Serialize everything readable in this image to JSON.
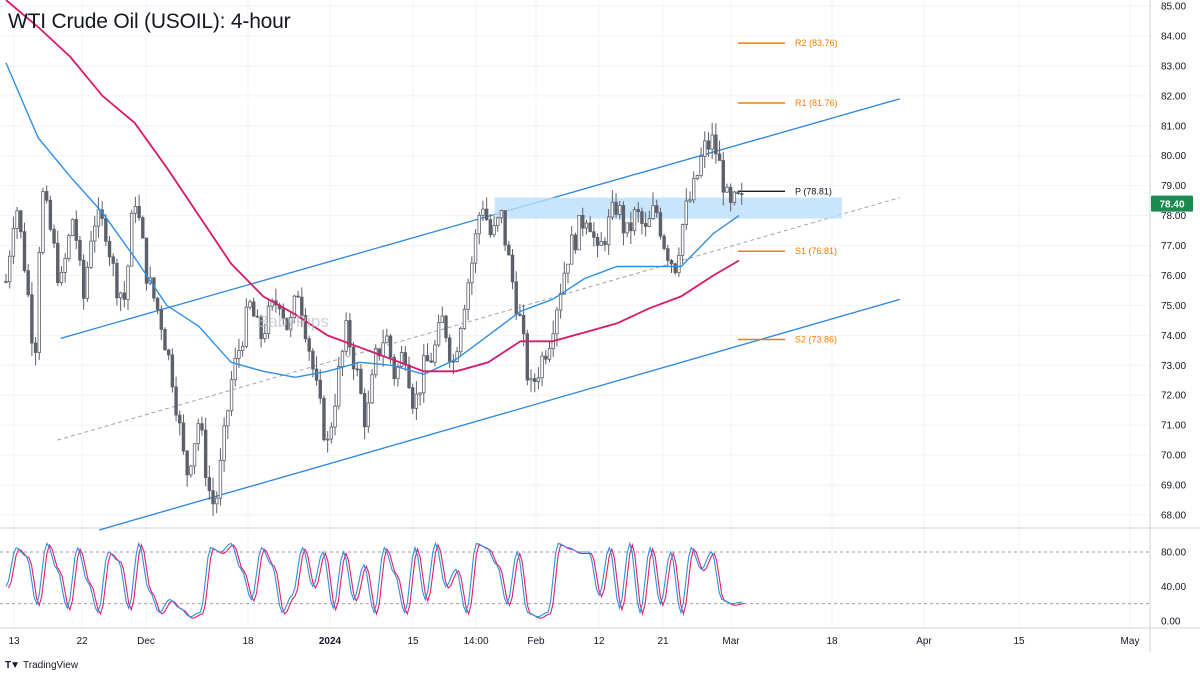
{
  "header": {
    "title": "WTI Crude Oil (USOIL): 4-hour"
  },
  "watermark": "BabyPips",
  "footer": {
    "brand": "TradingView"
  },
  "colors": {
    "candle": "#5d606b",
    "channel": "#2a86e0",
    "ma_blue": "#2e8ee6",
    "ma_red": "#d7196b",
    "pivot_orange": "#f57c00",
    "zone": "#bbdefb",
    "price_badge": "#1b8a4e",
    "stoch_k": "#2e8ee6",
    "stoch_d": "#e91e63"
  },
  "chart_data": [
    {
      "type": "candlestick",
      "title": "WTI Crude Oil (USOIL): 4-hour",
      "x_ticks": [
        "13",
        "22",
        "Dec",
        "18",
        "2024",
        "15",
        "14:00",
        "Feb",
        "12",
        "21",
        "Mar",
        "18",
        "Apr",
        "15",
        "May"
      ],
      "y_ticks": [
        "68.00",
        "69.00",
        "70.00",
        "71.00",
        "72.00",
        "73.00",
        "74.00",
        "75.00",
        "76.00",
        "77.00",
        "78.00",
        "79.00",
        "80.00",
        "81.00",
        "82.00",
        "83.00",
        "84.00",
        "85.00"
      ],
      "ylim": [
        67.5,
        85.2
      ],
      "current_price": "78.40",
      "close_path": [
        {
          "x": 0.0,
          "y": 75.8
        },
        {
          "x": 0.3,
          "y": 78.6
        },
        {
          "x": 0.6,
          "y": 76.2
        },
        {
          "x": 0.9,
          "y": 73.2
        },
        {
          "x": 1.1,
          "y": 78.9
        },
        {
          "x": 1.4,
          "y": 77.4
        },
        {
          "x": 1.7,
          "y": 75.6
        },
        {
          "x": 2.1,
          "y": 78.1
        },
        {
          "x": 2.4,
          "y": 75.1
        },
        {
          "x": 2.7,
          "y": 77.9
        },
        {
          "x": 3.1,
          "y": 77.6
        },
        {
          "x": 3.4,
          "y": 75.8
        },
        {
          "x": 3.7,
          "y": 75.2
        },
        {
          "x": 4.0,
          "y": 78.8
        },
        {
          "x": 4.4,
          "y": 75.9
        },
        {
          "x": 4.8,
          "y": 74.6
        },
        {
          "x": 5.2,
          "y": 72.5
        },
        {
          "x": 5.6,
          "y": 69.3
        },
        {
          "x": 6.0,
          "y": 71.2
        },
        {
          "x": 6.3,
          "y": 68.9
        },
        {
          "x": 6.5,
          "y": 68.2
        },
        {
          "x": 6.7,
          "y": 69.8
        },
        {
          "x": 7.0,
          "y": 72.4
        },
        {
          "x": 7.3,
          "y": 73.8
        },
        {
          "x": 7.6,
          "y": 75.0
        },
        {
          "x": 7.9,
          "y": 73.9
        },
        {
          "x": 8.2,
          "y": 74.7
        },
        {
          "x": 8.5,
          "y": 75.3
        },
        {
          "x": 8.8,
          "y": 74.1
        },
        {
          "x": 9.1,
          "y": 75.6
        },
        {
          "x": 9.4,
          "y": 73.8
        },
        {
          "x": 9.7,
          "y": 71.9
        },
        {
          "x": 10.0,
          "y": 70.3
        },
        {
          "x": 10.3,
          "y": 72.4
        },
        {
          "x": 10.6,
          "y": 74.2
        },
        {
          "x": 10.9,
          "y": 72.8
        },
        {
          "x": 11.2,
          "y": 71.0
        },
        {
          "x": 11.5,
          "y": 73.2
        },
        {
          "x": 11.8,
          "y": 74.1
        },
        {
          "x": 12.1,
          "y": 72.6
        },
        {
          "x": 12.4,
          "y": 73.6
        },
        {
          "x": 12.7,
          "y": 71.6
        },
        {
          "x": 13.0,
          "y": 72.9
        },
        {
          "x": 13.3,
          "y": 73.4
        },
        {
          "x": 13.6,
          "y": 74.6
        },
        {
          "x": 13.9,
          "y": 73.0
        },
        {
          "x": 14.2,
          "y": 74.9
        },
        {
          "x": 14.5,
          "y": 76.5
        },
        {
          "x": 14.8,
          "y": 78.6
        },
        {
          "x": 15.1,
          "y": 77.2
        },
        {
          "x": 15.4,
          "y": 78.0
        },
        {
          "x": 15.7,
          "y": 76.1
        },
        {
          "x": 16.0,
          "y": 74.4
        },
        {
          "x": 16.3,
          "y": 72.1
        },
        {
          "x": 16.6,
          "y": 73.0
        },
        {
          "x": 16.9,
          "y": 73.9
        },
        {
          "x": 17.2,
          "y": 75.4
        },
        {
          "x": 17.5,
          "y": 76.8
        },
        {
          "x": 17.8,
          "y": 77.5
        },
        {
          "x": 18.1,
          "y": 78.2
        },
        {
          "x": 18.4,
          "y": 76.6
        },
        {
          "x": 18.7,
          "y": 77.6
        },
        {
          "x": 19.0,
          "y": 78.4
        },
        {
          "x": 19.3,
          "y": 77.3
        },
        {
          "x": 19.6,
          "y": 78.1
        },
        {
          "x": 19.9,
          "y": 77.4
        },
        {
          "x": 20.2,
          "y": 78.3
        },
        {
          "x": 20.5,
          "y": 77.0
        },
        {
          "x": 20.8,
          "y": 76.3
        },
        {
          "x": 21.1,
          "y": 78.0
        },
        {
          "x": 21.4,
          "y": 78.9
        },
        {
          "x": 21.7,
          "y": 80.2
        },
        {
          "x": 22.0,
          "y": 80.5
        },
        {
          "x": 22.3,
          "y": 79.2
        },
        {
          "x": 22.5,
          "y": 78.1
        },
        {
          "x": 22.7,
          "y": 78.5
        },
        {
          "x": 22.9,
          "y": 78.4
        }
      ],
      "moving_averages": [
        {
          "name": "",
          "color": "#2e8ee6",
          "values": [
            {
              "x": 0.0,
              "y": 83.1
            },
            {
              "x": 1.0,
              "y": 80.6
            },
            {
              "x": 2.0,
              "y": 79.3
            },
            {
              "x": 3.0,
              "y": 78.1
            },
            {
              "x": 4.0,
              "y": 76.6
            },
            {
              "x": 5.0,
              "y": 75.0
            },
            {
              "x": 6.0,
              "y": 74.3
            },
            {
              "x": 7.0,
              "y": 73.1
            },
            {
              "x": 8.0,
              "y": 72.8
            },
            {
              "x": 9.0,
              "y": 72.6
            },
            {
              "x": 10.0,
              "y": 72.8
            },
            {
              "x": 11.0,
              "y": 73.1
            },
            {
              "x": 12.0,
              "y": 73.0
            },
            {
              "x": 13.0,
              "y": 72.7
            },
            {
              "x": 14.0,
              "y": 73.2
            },
            {
              "x": 15.0,
              "y": 74.0
            },
            {
              "x": 16.0,
              "y": 74.8
            },
            {
              "x": 17.0,
              "y": 75.2
            },
            {
              "x": 18.0,
              "y": 75.9
            },
            {
              "x": 19.0,
              "y": 76.3
            },
            {
              "x": 20.0,
              "y": 76.3
            },
            {
              "x": 21.0,
              "y": 76.3
            },
            {
              "x": 22.0,
              "y": 77.4
            },
            {
              "x": 22.8,
              "y": 78.0
            }
          ]
        },
        {
          "name": "",
          "color": "#d7196b",
          "values": [
            {
              "x": 0.0,
              "y": 85.2
            },
            {
              "x": 1.0,
              "y": 84.3
            },
            {
              "x": 2.0,
              "y": 83.3
            },
            {
              "x": 3.0,
              "y": 82.0
            },
            {
              "x": 4.0,
              "y": 81.1
            },
            {
              "x": 5.0,
              "y": 79.6
            },
            {
              "x": 6.0,
              "y": 78.0
            },
            {
              "x": 7.0,
              "y": 76.4
            },
            {
              "x": 8.0,
              "y": 75.3
            },
            {
              "x": 9.0,
              "y": 74.7
            },
            {
              "x": 10.0,
              "y": 74.0
            },
            {
              "x": 11.0,
              "y": 73.6
            },
            {
              "x": 12.0,
              "y": 73.2
            },
            {
              "x": 13.0,
              "y": 72.8
            },
            {
              "x": 14.0,
              "y": 72.8
            },
            {
              "x": 15.0,
              "y": 73.1
            },
            {
              "x": 16.0,
              "y": 73.8
            },
            {
              "x": 17.0,
              "y": 73.8
            },
            {
              "x": 18.0,
              "y": 74.1
            },
            {
              "x": 19.0,
              "y": 74.4
            },
            {
              "x": 20.0,
              "y": 74.9
            },
            {
              "x": 21.0,
              "y": 75.3
            },
            {
              "x": 22.0,
              "y": 76.0
            },
            {
              "x": 22.8,
              "y": 76.5
            }
          ]
        }
      ],
      "channel": {
        "upper": {
          "x1": 1.7,
          "y1": 73.9,
          "x2": 27.8,
          "y2": 81.9
        },
        "lower": {
          "x1": 2.9,
          "y1": 67.5,
          "x2": 27.8,
          "y2": 75.2
        },
        "mid": {
          "x1": 1.6,
          "y1": 70.5,
          "x2": 27.8,
          "y2": 78.6
        }
      },
      "zone": {
        "x_from": 15.2,
        "x_to": 26.0,
        "y_from": 77.9,
        "y_to": 78.6
      },
      "pivot_levels": [
        {
          "label": "R2 (83.76)",
          "value": 83.76,
          "color": "#f57c00"
        },
        {
          "label": "R1 (81.76)",
          "value": 81.76,
          "color": "#f57c00"
        },
        {
          "label": "P (78.81)",
          "value": 78.81,
          "color": "#131722"
        },
        {
          "label": "S1 (76.81)",
          "value": 76.81,
          "color": "#f57c00"
        },
        {
          "label": "S2 (73.86)",
          "value": 73.86,
          "color": "#f57c00"
        }
      ]
    },
    {
      "type": "line",
      "title": "",
      "y_ticks": [
        "80.00",
        "40.00",
        "0.00"
      ],
      "ylim": [
        -5,
        105
      ],
      "reference_lines": [
        80,
        20
      ],
      "series": [
        {
          "name": "",
          "color": "#2e8ee6",
          "values": [
            40,
            85,
            75,
            20,
            90,
            60,
            15,
            85,
            45,
            10,
            80,
            70,
            15,
            90,
            35,
            10,
            25,
            15,
            5,
            10,
            85,
            80,
            90,
            60,
            25,
            85,
            65,
            10,
            30,
            85,
            40,
            80,
            15,
            80,
            25,
            65,
            10,
            85,
            55,
            10,
            85,
            25,
            90,
            40,
            60,
            10,
            90,
            85,
            65,
            20,
            80,
            10,
            5,
            10,
            90,
            85,
            80,
            80,
            30,
            85,
            15,
            90,
            10,
            85,
            20,
            80,
            10,
            85,
            60,
            80,
            25,
            20,
            22
          ]
        }
      ]
    }
  ]
}
